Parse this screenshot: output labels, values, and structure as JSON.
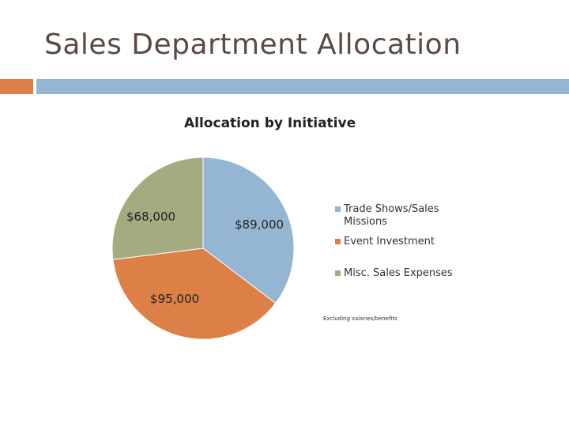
{
  "slide": {
    "title": "Sales Department Allocation",
    "accent_colors": {
      "orange": "#dd8047",
      "blue": "#94b6d2"
    }
  },
  "chart_data": {
    "type": "pie",
    "title": "Allocation by Initiative",
    "slices": [
      {
        "name": "Trade Shows/Sales Missions",
        "value": 89000,
        "label": "$89,000",
        "color": "#94b6d2"
      },
      {
        "name": "Event Investment",
        "value": 95000,
        "label": "$95,000",
        "color": "#dd8047"
      },
      {
        "name": "Misc. Sales Expenses",
        "value": 68000,
        "label": "$68,000",
        "color": "#a5ab81"
      }
    ],
    "legend_position": "right",
    "footnote": "Excluding salaries/benefits"
  }
}
